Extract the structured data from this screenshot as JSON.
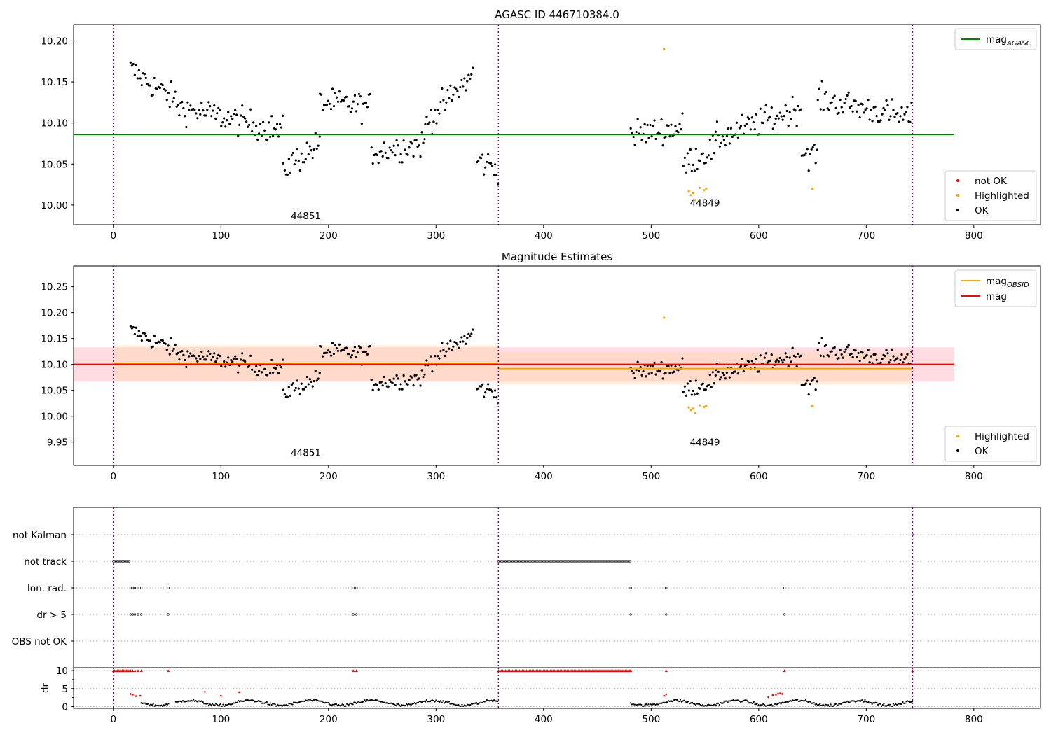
{
  "chart_data": [
    {
      "type": "scatter",
      "title": "AGASC ID 446710384.0",
      "xlim": [
        -37,
        862
      ],
      "ylim": [
        9.976,
        10.22
      ],
      "xticks": [
        0,
        100,
        200,
        300,
        400,
        500,
        600,
        700,
        800
      ],
      "yticks": [
        10.0,
        10.05,
        10.1,
        10.15,
        10.2
      ],
      "obs_boundaries": [
        0,
        358,
        743
      ],
      "obs_labels": [
        {
          "text": "44851",
          "x": 179,
          "y": 9.987
        },
        {
          "text": "44849",
          "x": 550,
          "y": 10.003
        }
      ],
      "lines": [
        {
          "name": "mag_AGASC",
          "y": 10.086,
          "x": [
            -37,
            782
          ],
          "color": "#008000"
        }
      ],
      "legend_top": [
        {
          "label": "mag",
          "sub": "AGASC",
          "color": "#008000"
        }
      ],
      "legend_bottom": [
        {
          "label": "not OK",
          "color": "#ff0000"
        },
        {
          "label": "Highlighted",
          "color": "#ffa500"
        },
        {
          "label": "OK",
          "color": "#000000"
        }
      ],
      "highlighted_points": [
        [
          512,
          10.19
        ],
        [
          535,
          10.017
        ],
        [
          537,
          10.012
        ],
        [
          539,
          10.015
        ],
        [
          541,
          10.006
        ],
        [
          545,
          10.021
        ],
        [
          549,
          10.018
        ],
        [
          551,
          10.02
        ],
        [
          650,
          10.02
        ]
      ]
    },
    {
      "type": "scatter",
      "title": "Magnitude Estimates",
      "xlim": [
        -37,
        862
      ],
      "ylim": [
        9.905,
        10.29
      ],
      "xticks": [
        0,
        100,
        200,
        300,
        400,
        500,
        600,
        700,
        800
      ],
      "yticks": [
        9.95,
        10.0,
        10.05,
        10.1,
        10.15,
        10.2,
        10.25
      ],
      "obs_boundaries": [
        0,
        358,
        743
      ],
      "obs_labels": [
        {
          "text": "44851",
          "x": 179,
          "y": 9.93
        },
        {
          "text": "44849",
          "x": 550,
          "y": 9.95
        }
      ],
      "lines": [
        {
          "name": "mag_OBSID_1",
          "y": 10.102,
          "x": [
            0,
            358
          ],
          "color": "#ffa500"
        },
        {
          "name": "mag_OBSID_2",
          "y": 10.092,
          "x": [
            358,
            743
          ],
          "color": "#ffa500"
        },
        {
          "name": "mag",
          "y": 10.1,
          "x": [
            -37,
            782
          ],
          "color": "#ff0000"
        }
      ],
      "bands": [
        {
          "x": [
            -37,
            782
          ],
          "y": [
            10.067,
            10.133
          ],
          "color": "#ff9aa8"
        },
        {
          "x": [
            0,
            358
          ],
          "y": [
            10.068,
            10.137
          ],
          "color": "#ffd8a0"
        },
        {
          "x": [
            358,
            743
          ],
          "y": [
            10.061,
            10.123
          ],
          "color": "#ffd8a0"
        }
      ],
      "legend_top": [
        {
          "label": "mag",
          "sub": "OBSID",
          "color": "#ffa500"
        },
        {
          "label": "mag",
          "sub": "",
          "color": "#ff0000"
        }
      ],
      "legend_bottom": [
        {
          "label": "Highlighted",
          "color": "#ffa500"
        },
        {
          "label": "OK",
          "color": "#000000"
        }
      ],
      "highlighted_points": [
        [
          512,
          10.19
        ],
        [
          535,
          10.017
        ],
        [
          537,
          10.012
        ],
        [
          539,
          10.015
        ],
        [
          541,
          10.006
        ],
        [
          545,
          10.021
        ],
        [
          549,
          10.018
        ],
        [
          551,
          10.02
        ],
        [
          650,
          10.02
        ]
      ]
    },
    {
      "type": "scatter",
      "xlim": [
        -37,
        862
      ],
      "categories": [
        "not Kalman",
        "not track",
        "Ion. rad.",
        "dr > 5",
        "OBS not OK"
      ],
      "flags": {
        "not Kalman": [
          743
        ],
        "not track": [
          {
            "range": [
              0,
              15
            ],
            "step": 1.2
          },
          {
            "range": [
              358,
              481
            ],
            "step": 1.3
          }
        ],
        "Ion. rad.": [
          16,
          18,
          20,
          23,
          26,
          51,
          223,
          226,
          481,
          514,
          624
        ],
        "dr > 5": [
          16,
          18,
          20,
          23,
          26,
          51,
          223,
          226,
          481,
          514,
          624
        ],
        "OBS not OK": []
      }
    },
    {
      "type": "scatter",
      "ylabel": "dr",
      "xlim": [
        -37,
        862
      ],
      "ylim": [
        -0.5,
        10.8
      ],
      "yticks": [
        0,
        5,
        10
      ],
      "xticks": [
        0,
        100,
        200,
        300,
        400,
        500,
        600,
        700,
        800
      ],
      "clipped_value": 10,
      "clipped_x": [
        {
          "range": [
            0,
            15
          ],
          "step": 1.2
        },
        {
          "range": [
            358,
            481
          ],
          "step": 1.3
        },
        16,
        18,
        20,
        23,
        26,
        51,
        223,
        226,
        481,
        514,
        624,
        743
      ],
      "red_points": [
        [
          16,
          3.5
        ],
        [
          18,
          3.3
        ],
        [
          21,
          2.9
        ],
        [
          25,
          3.0
        ],
        [
          85,
          4.1
        ],
        [
          100,
          3.0
        ],
        [
          117,
          4.0
        ],
        [
          512,
          3.0
        ],
        [
          514,
          3.4
        ],
        [
          609,
          2.6
        ],
        [
          613,
          3.2
        ],
        [
          616,
          3.3
        ],
        [
          618,
          3.6
        ],
        [
          620,
          3.7
        ],
        [
          622,
          3.5
        ]
      ],
      "colors": {
        "clipped": "#ff0000",
        "ok": "#000000"
      }
    }
  ]
}
